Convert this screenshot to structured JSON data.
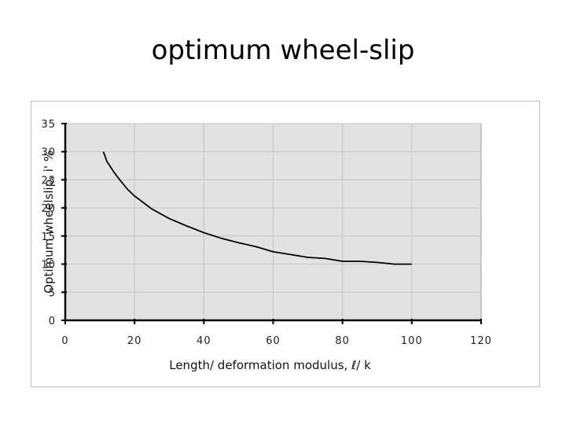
{
  "slide": {
    "title": "optimum wheel-slip"
  },
  "chart_data": {
    "type": "line",
    "title": "",
    "xlabel": "Length/ deformation modulus, ℓ/ k",
    "ylabel": "Optimum wheelslip, i' %",
    "xlim": [
      0,
      120
    ],
    "ylim": [
      0,
      35
    ],
    "xticks": [
      0,
      20,
      40,
      60,
      80,
      100,
      120
    ],
    "yticks": [
      0,
      5,
      10,
      15,
      20,
      25,
      30,
      35
    ],
    "grid": true,
    "legend": "none",
    "colors": {
      "plot_area": "#e2e2e2",
      "line": "#000000",
      "grid": "#c4c4c4"
    },
    "series": [
      {
        "x": [
          11,
          12,
          14,
          16,
          18,
          20,
          22,
          25,
          30,
          35,
          40,
          45,
          50,
          55,
          60,
          65,
          70,
          75,
          80,
          85,
          90,
          95,
          100
        ],
        "y": [
          30,
          28.3,
          26.4,
          24.8,
          23.3,
          22.1,
          21.2,
          19.8,
          18.1,
          16.8,
          15.6,
          14.6,
          13.8,
          13.1,
          12.2,
          11.7,
          11.2,
          11.0,
          10.5,
          10.5,
          10.3,
          10.0,
          10.0
        ]
      }
    ]
  }
}
